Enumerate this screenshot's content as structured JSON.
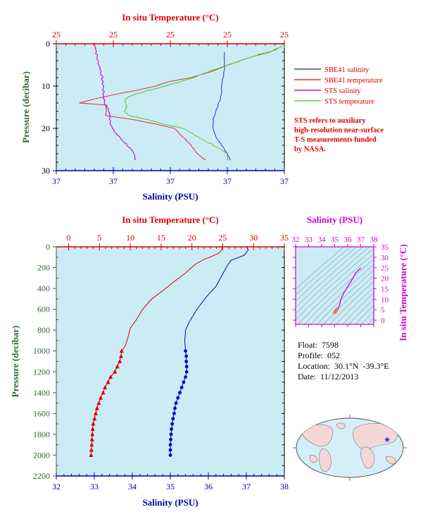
{
  "colors": {
    "plot_bg": "#ccecf5",
    "axis_red": "#dd0000",
    "axis_blue": "#0000aa",
    "axis_green": "#336633",
    "magenta": "#cc00cc",
    "sbe_salinity": "#3344bb",
    "sbe_temperature": "#dd3333",
    "sts_salinity": "#cc11cc",
    "sts_temperature": "#66cc55",
    "ts_pink": "#ee7777"
  },
  "top_panel": {
    "xlabel_top": "In situ Temperature (°C)",
    "xticks_top": [
      "25",
      "25",
      "25",
      "25",
      "25"
    ],
    "xlabel_bottom": "Salinity (PSU)",
    "xticks_bottom": [
      "37",
      "37",
      "37",
      "37",
      "37"
    ],
    "ylabel": "Pressure (decibar)",
    "yticks": [
      "0",
      "10",
      "20",
      "30"
    ],
    "legend": [
      {
        "label": "SBE41 salinity",
        "color": "#3344bb"
      },
      {
        "label": "SBE41 temperature",
        "color": "#dd3333"
      },
      {
        "label": "STS salinity",
        "color": "#cc11cc"
      },
      {
        "label": "STS temperature",
        "color": "#66cc55"
      }
    ],
    "note": [
      "STS refers to auxiliary",
      "high-resolution near-surface",
      "T-S measurements funded",
      "by NASA."
    ]
  },
  "main_panel": {
    "xlabel_top": "In situ Temperature (°C)",
    "xticks_top": [
      "0",
      "5",
      "10",
      "15",
      "20",
      "25",
      "30",
      "35"
    ],
    "xlabel_bottom": "Salinity (PSU)",
    "xticks_bottom": [
      "32",
      "33",
      "34",
      "35",
      "36",
      "37",
      "38"
    ],
    "ylabel": "Pressure (decibar)",
    "yticks": [
      "0",
      "200",
      "400",
      "600",
      "800",
      "1000",
      "1200",
      "1400",
      "1600",
      "1800",
      "2000",
      "2200"
    ]
  },
  "ts_panel": {
    "xlabel": "Salinity (PSU)",
    "xticks": [
      "32",
      "33",
      "34",
      "35",
      "36",
      "37",
      "38"
    ],
    "ylabel": "In situ Temperature (°C)",
    "yticks": [
      "0",
      "5",
      "10",
      "15",
      "20",
      "25",
      "30",
      "35"
    ]
  },
  "info": {
    "float": "Float:  7598",
    "profile": "Profile:  052",
    "location": "Location:  30.1°N  -39.3°E",
    "date": "Date:  11/12/2013"
  },
  "map": {
    "marker_icon": "star-icon",
    "marker_color": "#2233cc"
  },
  "chart_data": [
    {
      "type": "line",
      "panel": "near-surface profile",
      "y_axis": "Pressure (decibar)",
      "ylim": [
        30,
        0
      ],
      "top_axis": "In situ Temperature (°C)",
      "top_xlim": [
        19,
        30
      ],
      "bottom_axis": "Salinity (PSU)",
      "bottom_xlim": [
        36.6,
        37.4
      ],
      "grid": false,
      "legend_position": "right",
      "series": [
        {
          "name": "SBE41 salinity",
          "axis": "bottom",
          "points": [
            [
              37.19,
              2
            ],
            [
              37.19,
              4
            ],
            [
              37.19,
              6
            ],
            [
              37.185,
              8
            ],
            [
              37.18,
              10
            ],
            [
              37.18,
              12
            ],
            [
              37.17,
              14
            ],
            [
              37.16,
              16
            ],
            [
              37.15,
              18
            ],
            [
              37.15,
              20
            ],
            [
              37.16,
              22
            ],
            [
              37.18,
              24
            ],
            [
              37.2,
              26
            ],
            [
              37.21,
              27.5
            ]
          ]
        },
        {
          "name": "SBE41 temperature",
          "axis": "top",
          "points": [
            [
              29.7,
              1
            ],
            [
              29.3,
              2
            ],
            [
              28.5,
              3
            ],
            [
              27.9,
              4
            ],
            [
              27.3,
              5
            ],
            [
              26.8,
              6
            ],
            [
              26.2,
              7
            ],
            [
              25.5,
              8
            ],
            [
              24.4,
              9
            ],
            [
              23.8,
              10
            ],
            [
              22.9,
              11
            ],
            [
              21.8,
              12
            ],
            [
              20.9,
              13
            ],
            [
              20.1,
              14
            ],
            [
              21.4,
              14.5
            ],
            [
              21.4,
              17
            ],
            [
              22.8,
              18
            ],
            [
              23.8,
              19
            ],
            [
              24.7,
              20
            ],
            [
              25.1,
              22
            ],
            [
              25.5,
              24
            ],
            [
              25.8,
              26
            ],
            [
              26.2,
              27.5
            ]
          ]
        },
        {
          "name": "STS salinity",
          "axis": "bottom",
          "points": [
            [
              36.73,
              0.2
            ],
            [
              36.74,
              1
            ],
            [
              36.74,
              2
            ],
            [
              36.745,
              4
            ],
            [
              36.755,
              6
            ],
            [
              36.76,
              8
            ],
            [
              36.765,
              10
            ],
            [
              36.765,
              12
            ],
            [
              36.77,
              14
            ],
            [
              36.785,
              16
            ],
            [
              36.79,
              18
            ],
            [
              36.795,
              20
            ],
            [
              36.82,
              22
            ],
            [
              36.85,
              24
            ],
            [
              36.87,
              26
            ],
            [
              36.88,
              27.5
            ]
          ]
        },
        {
          "name": "STS temperature",
          "axis": "top",
          "points": [
            [
              29.9,
              0.5
            ],
            [
              29.6,
              1.5
            ],
            [
              28.8,
              2.5
            ],
            [
              28.2,
              3.5
            ],
            [
              27.6,
              4.5
            ],
            [
              27.0,
              5.5
            ],
            [
              26.4,
              6.5
            ],
            [
              25.9,
              7.5
            ],
            [
              25.3,
              8.5
            ],
            [
              24.6,
              9.5
            ],
            [
              23.9,
              10.5
            ],
            [
              23.1,
              11.5
            ],
            [
              22.5,
              12.5
            ],
            [
              22.3,
              13.5
            ],
            [
              22.4,
              14.5
            ],
            [
              22.3,
              16
            ],
            [
              22.5,
              17
            ],
            [
              23.5,
              18
            ],
            [
              24.2,
              19
            ],
            [
              25.1,
              20
            ],
            [
              25.5,
              21
            ],
            [
              25.8,
              22
            ],
            [
              26.2,
              23
            ],
            [
              26.6,
              24
            ],
            [
              26.9,
              25
            ],
            [
              27.2,
              26
            ],
            [
              27.3,
              27.5
            ]
          ]
        }
      ]
    },
    {
      "type": "line",
      "panel": "full-depth profile",
      "y_axis": "Pressure (decibar)",
      "ylim": [
        2200,
        0
      ],
      "top_axis": "In situ Temperature (°C)",
      "top_xlim": [
        -2,
        35
      ],
      "bottom_axis": "Salinity (PSU)",
      "bottom_xlim": [
        32,
        38
      ],
      "grid": false,
      "series": [
        {
          "name": "temperature",
          "axis": "top",
          "marker": "triangle",
          "points": [
            [
              24.9,
              0
            ],
            [
              24.8,
              30
            ],
            [
              24.4,
              60
            ],
            [
              22.9,
              100
            ],
            [
              22.0,
              120
            ],
            [
              20.5,
              170
            ],
            [
              19.0,
              250
            ],
            [
              17.2,
              330
            ],
            [
              15.3,
              420
            ],
            [
              13.5,
              500
            ],
            [
              12.0,
              600
            ],
            [
              11.0,
              700
            ],
            [
              10.0,
              780
            ],
            [
              9.7,
              850
            ],
            [
              9.2,
              950
            ],
            [
              8.6,
              1000
            ],
            [
              8.5,
              1050
            ],
            [
              8.3,
              1100
            ],
            [
              7.9,
              1150
            ],
            [
              7.5,
              1200
            ],
            [
              6.8,
              1250
            ],
            [
              6.4,
              1300
            ],
            [
              5.9,
              1350
            ],
            [
              5.6,
              1400
            ],
            [
              5.2,
              1450
            ],
            [
              4.9,
              1500
            ],
            [
              4.6,
              1550
            ],
            [
              4.4,
              1600
            ],
            [
              4.2,
              1650
            ],
            [
              4.0,
              1700
            ],
            [
              3.9,
              1750
            ],
            [
              3.85,
              1800
            ],
            [
              3.8,
              1850
            ],
            [
              3.75,
              1900
            ],
            [
              3.7,
              1950
            ],
            [
              3.65,
              2000
            ]
          ]
        },
        {
          "name": "salinity",
          "axis": "bottom",
          "marker": "circle",
          "points": [
            [
              37.0,
              0
            ],
            [
              37.05,
              30
            ],
            [
              36.95,
              80
            ],
            [
              36.6,
              130
            ],
            [
              36.5,
              180
            ],
            [
              36.35,
              280
            ],
            [
              36.2,
              380
            ],
            [
              35.95,
              480
            ],
            [
              35.7,
              600
            ],
            [
              35.5,
              720
            ],
            [
              35.4,
              800
            ],
            [
              35.38,
              900
            ],
            [
              35.4,
              1000
            ],
            [
              35.42,
              1050
            ],
            [
              35.42,
              1100
            ],
            [
              35.43,
              1150
            ],
            [
              35.43,
              1200
            ],
            [
              35.4,
              1250
            ],
            [
              35.35,
              1300
            ],
            [
              35.3,
              1350
            ],
            [
              35.25,
              1400
            ],
            [
              35.2,
              1450
            ],
            [
              35.15,
              1500
            ],
            [
              35.12,
              1550
            ],
            [
              35.1,
              1600
            ],
            [
              35.07,
              1650
            ],
            [
              35.05,
              1700
            ],
            [
              35.03,
              1750
            ],
            [
              35.02,
              1800
            ],
            [
              35.01,
              1850
            ],
            [
              35.0,
              1900
            ],
            [
              35.0,
              1950
            ],
            [
              35.0,
              2000
            ]
          ]
        }
      ]
    },
    {
      "type": "scatter",
      "panel": "T-S diagram",
      "xlabel": "Salinity (PSU)",
      "ylabel": "In situ Temperature (°C)",
      "xlim": [
        32,
        38
      ],
      "ylim": [
        -2,
        35
      ],
      "series": [
        {
          "name": "profile",
          "points": [
            [
              35.0,
              3.7
            ],
            [
              35.02,
              3.9
            ],
            [
              35.05,
              4.2
            ],
            [
              35.1,
              4.5
            ],
            [
              35.15,
              4.9
            ],
            [
              35.2,
              5.3
            ],
            [
              35.25,
              5.7
            ],
            [
              35.3,
              6.2
            ],
            [
              35.38,
              7.2
            ],
            [
              35.42,
              8.4
            ],
            [
              35.45,
              9.5
            ],
            [
              35.55,
              11.0
            ],
            [
              35.7,
              13.0
            ],
            [
              35.95,
              15.5
            ],
            [
              36.2,
              18.0
            ],
            [
              36.45,
              20.5
            ],
            [
              36.6,
              22.5
            ],
            [
              37.0,
              24.9
            ]
          ]
        }
      ]
    }
  ]
}
